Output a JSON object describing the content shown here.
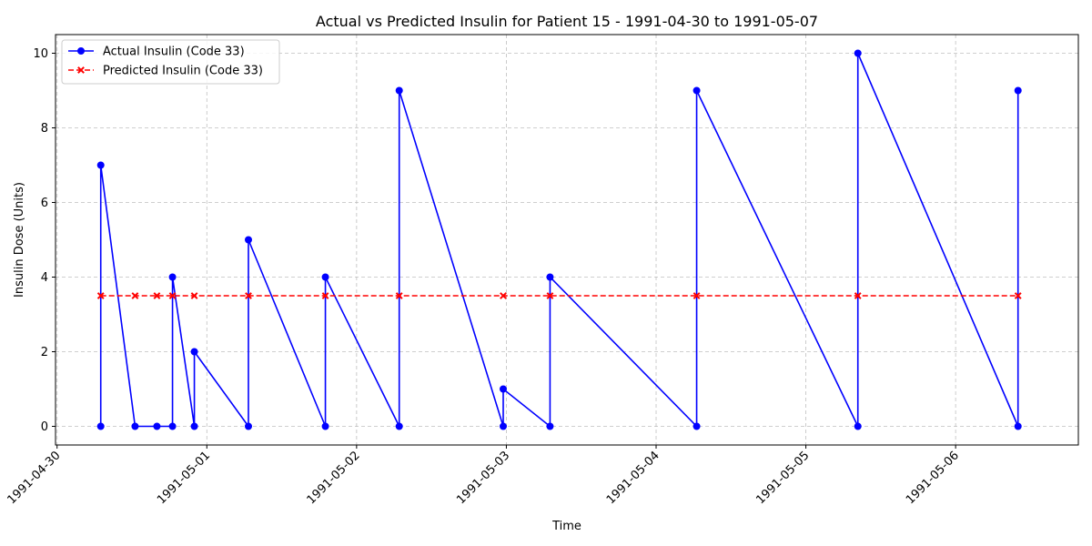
{
  "chart_data": {
    "type": "line",
    "title": "Actual vs Predicted Insulin for Patient 15 - 1991-04-30 to 1991-05-07",
    "xlabel": "Time",
    "ylabel": "Insulin Dose (Units)",
    "x_ticks": [
      "1991-04-30",
      "1991-05-01",
      "1991-05-02",
      "1991-05-03",
      "1991-05-04",
      "1991-05-05",
      "1991-05-06"
    ],
    "y_ticks": [
      0,
      2,
      4,
      6,
      8,
      10
    ],
    "xlim": [
      "1991-04-29T23:45",
      "1991-05-06T19:40"
    ],
    "ylim": [
      -0.5,
      10.5
    ],
    "grid": true,
    "legend_position": "top-left",
    "series": [
      {
        "name": "Actual Insulin (Code 33)",
        "color": "#0000ff",
        "style": "solid",
        "marker": "circle",
        "points": [
          [
            "1991-04-30T07:00",
            0
          ],
          [
            "1991-04-30T07:00",
            7
          ],
          [
            "1991-04-30T12:30",
            0
          ],
          [
            "1991-04-30T16:00",
            0
          ],
          [
            "1991-04-30T18:30",
            0
          ],
          [
            "1991-04-30T18:30",
            4
          ],
          [
            "1991-04-30T22:00",
            0
          ],
          [
            "1991-04-30T22:00",
            2
          ],
          [
            "1991-05-01T06:40",
            0
          ],
          [
            "1991-05-01T06:40",
            5
          ],
          [
            "1991-05-01T19:00",
            0
          ],
          [
            "1991-05-01T19:00",
            4
          ],
          [
            "1991-05-02T06:50",
            0
          ],
          [
            "1991-05-02T06:50",
            9
          ],
          [
            "1991-05-02T23:30",
            0
          ],
          [
            "1991-05-02T23:30",
            1
          ],
          [
            "1991-05-03T07:00",
            0
          ],
          [
            "1991-05-03T07:00",
            4
          ],
          [
            "1991-05-04T06:30",
            0
          ],
          [
            "1991-05-04T06:30",
            9
          ],
          [
            "1991-05-05T08:20",
            0
          ],
          [
            "1991-05-05T08:20",
            10
          ],
          [
            "1991-05-06T10:00",
            0
          ],
          [
            "1991-05-06T10:00",
            9
          ]
        ]
      },
      {
        "name": "Predicted Insulin (Code 33)",
        "color": "#ff0000",
        "style": "dashed",
        "marker": "x",
        "points": [
          [
            "1991-04-30T07:00",
            3.5
          ],
          [
            "1991-04-30T12:30",
            3.5
          ],
          [
            "1991-04-30T16:00",
            3.5
          ],
          [
            "1991-04-30T18:30",
            3.5
          ],
          [
            "1991-04-30T22:00",
            3.5
          ],
          [
            "1991-05-01T06:40",
            3.5
          ],
          [
            "1991-05-01T19:00",
            3.5
          ],
          [
            "1991-05-02T06:50",
            3.5
          ],
          [
            "1991-05-02T23:30",
            3.5
          ],
          [
            "1991-05-03T07:00",
            3.5
          ],
          [
            "1991-05-04T06:30",
            3.5
          ],
          [
            "1991-05-05T08:20",
            3.5
          ],
          [
            "1991-05-06T10:00",
            3.5
          ]
        ]
      }
    ]
  }
}
